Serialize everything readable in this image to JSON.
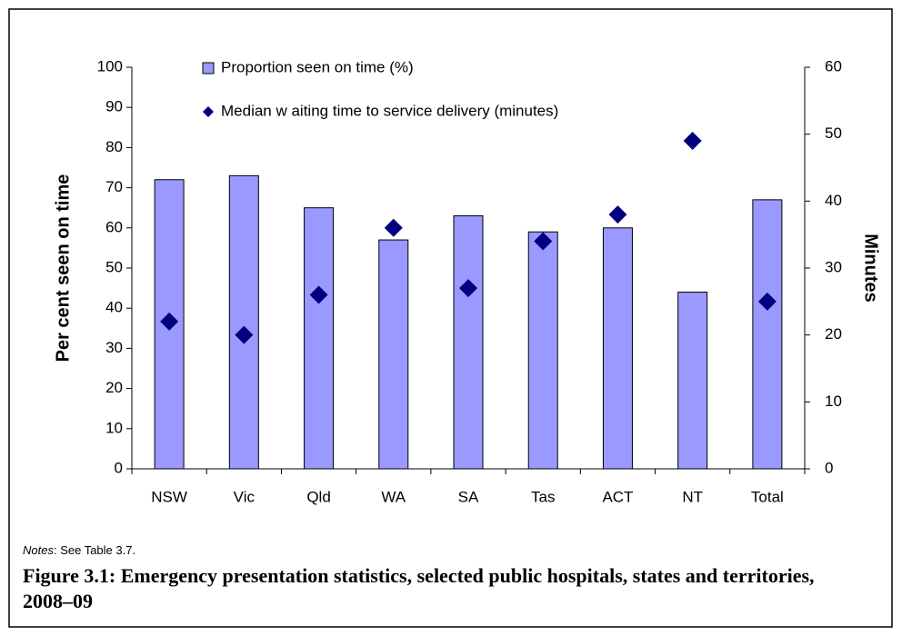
{
  "chart_data": {
    "type": "bar",
    "categories": [
      "NSW",
      "Vic",
      "Qld",
      "WA",
      "SA",
      "Tas",
      "ACT",
      "NT",
      "Total"
    ],
    "series": [
      {
        "name": "Proportion seen on time (%)",
        "color": "#9999ff",
        "values": [
          72,
          73,
          65,
          57,
          63,
          59,
          60,
          44,
          67
        ]
      },
      {
        "name": "Median w aiting time to service delivery (minutes)",
        "color": "#000080",
        "axis": "y2",
        "type": "scatter",
        "values": [
          22,
          20,
          26,
          36,
          27,
          34,
          38,
          49,
          25
        ]
      }
    ],
    "ylabel": "Per cent seen on time",
    "y2label": "Minutes",
    "ylim": [
      0,
      100
    ],
    "yticks": [
      0,
      10,
      20,
      30,
      40,
      50,
      60,
      70,
      80,
      90,
      100
    ],
    "y2lim": [
      0,
      60
    ],
    "y2ticks": [
      0,
      10,
      20,
      30,
      40,
      50,
      60
    ],
    "notes_label": "Notes",
    "notes_text": ": See Table 3.7.",
    "caption": "Figure 3.1: Emergency presentation statistics, selected public hospitals, states and territories, 2008–09"
  }
}
